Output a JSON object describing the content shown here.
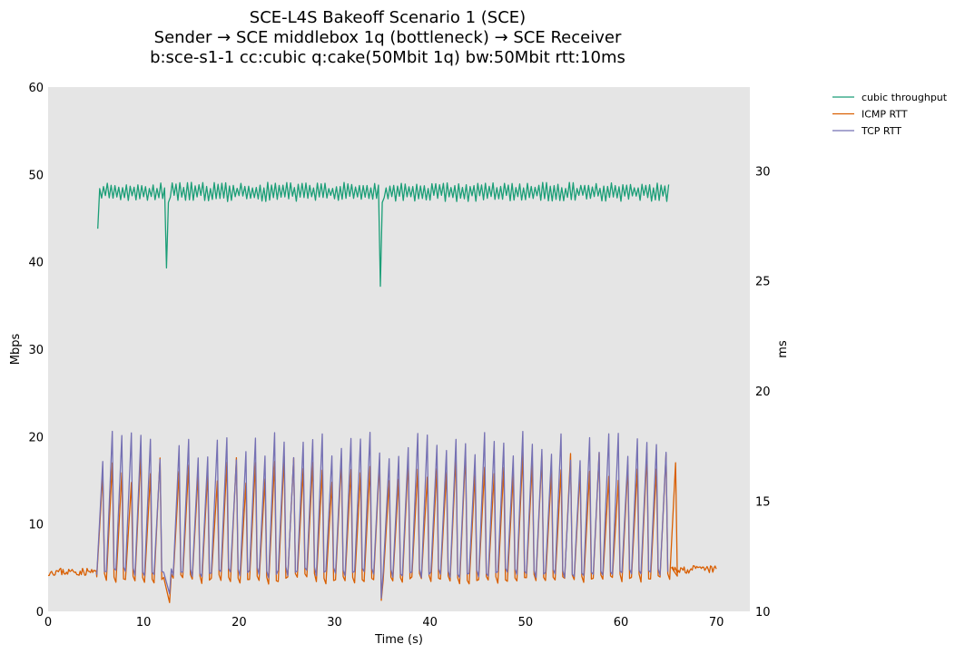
{
  "chart_data": {
    "type": "line",
    "title": [
      "SCE-L4S Bakeoff Scenario 1 (SCE)",
      "Sender → SCE middlebox 1q (bottleneck) → SCE Receiver",
      "b:sce-s1-1 cc:cubic q:cake(50Mbit 1q) bw:50Mbit rtt:10ms"
    ],
    "xlabel": "Time (s)",
    "ylabel": "Mbps",
    "y2label": "ms",
    "xlim": [
      0,
      73.5
    ],
    "ylim": [
      0,
      60
    ],
    "y2lim": [
      10,
      33.8
    ],
    "xticks": [
      "0",
      "10",
      "20",
      "30",
      "40",
      "50",
      "60",
      "70"
    ],
    "yticks": [
      "0",
      "10",
      "20",
      "30",
      "40",
      "50",
      "60"
    ],
    "y2ticks": [
      "10",
      "15",
      "20",
      "25",
      "30"
    ],
    "legend_position": "outside-top-right",
    "series": [
      {
        "name": "cubic throughput",
        "axis": "left",
        "color": "#1b9e77",
        "x_start": 5.2,
        "x_end": 65.0,
        "step": 0.2,
        "baseline": 48.0,
        "oscillation": 1.1,
        "start_value": 43.8,
        "dips": [
          {
            "x": 12.4,
            "value": 39.3
          },
          {
            "x": 34.8,
            "value": 37.2
          }
        ]
      },
      {
        "name": "ICMP RTT",
        "axis": "right",
        "color": "#d95f02",
        "idle_before": {
          "x_start": 0,
          "x_end": 5.1,
          "value": 11.8
        },
        "idle_after": {
          "x_start": 65.3,
          "x_end": 70.0,
          "value": 11.9
        },
        "sawtooth": {
          "x_start": 5.1,
          "x_end": 65.3,
          "period": 1.0,
          "low": 11.4,
          "high": 16.5
        },
        "lows": [
          {
            "x": 12.5,
            "value": 10.4
          },
          {
            "x": 35.0,
            "value": 10.5
          }
        ]
      },
      {
        "name": "TCP RTT",
        "axis": "right",
        "color": "#7570b3",
        "sawtooth": {
          "x_start": 5.1,
          "x_end": 64.9,
          "period": 1.0,
          "low": 11.7,
          "high": 17.5
        },
        "lows": [
          {
            "x": 12.5,
            "value": 10.8
          },
          {
            "x": 35.0,
            "value": 10.6
          }
        ]
      }
    ]
  }
}
